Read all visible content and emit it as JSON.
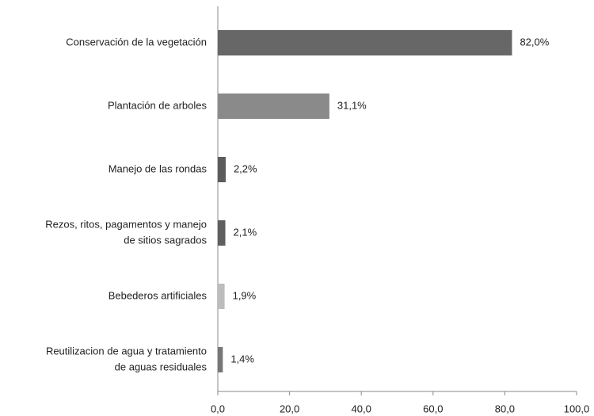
{
  "chart_data": {
    "type": "bar",
    "orientation": "horizontal",
    "categories": [
      [
        "Conservación de la vegetación"
      ],
      [
        "Plantación de arboles"
      ],
      [
        "Manejo de las rondas"
      ],
      [
        "Rezos, ritos, pagamentos y manejo",
        "de sitios sagrados"
      ],
      [
        "Bebederos artificiales"
      ],
      [
        "Reutilizacion de agua y tratamiento",
        "de aguas residuales"
      ]
    ],
    "values": [
      82.0,
      31.1,
      2.2,
      2.1,
      1.9,
      1.4
    ],
    "value_labels": [
      "82,0%",
      "31,1%",
      "2,2%",
      "2,1%",
      "1,9%",
      "1,4%"
    ],
    "colors": [
      "#676767",
      "#8a8a8a",
      "#5c5c5c",
      "#5f5f5f",
      "#bdbdbd",
      "#777777"
    ],
    "xlim": [
      0,
      100
    ],
    "xticks": [
      {
        "value": 0,
        "label": "0,0"
      },
      {
        "value": 20,
        "label": "20,0"
      },
      {
        "value": 40,
        "label": "40,0"
      },
      {
        "value": 60,
        "label": "60,0"
      },
      {
        "value": 80,
        "label": "80,0"
      },
      {
        "value": 100,
        "label": "100,0"
      }
    ],
    "grid": false
  }
}
